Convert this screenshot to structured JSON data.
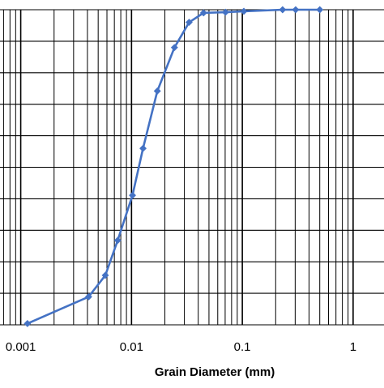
{
  "chart_data": {
    "type": "line",
    "x_scale": "log",
    "xlabel": "Grain Diameter (mm)",
    "ylabel": "",
    "title": "",
    "xlim": [
      0.00065,
      1.9
    ],
    "ylim": [
      0,
      100
    ],
    "grid": true,
    "x_tick_labels": [
      {
        "value": 0.001,
        "label": "0.001"
      },
      {
        "value": 0.01,
        "label": "0.01"
      },
      {
        "value": 0.1,
        "label": "0.1"
      },
      {
        "value": 1,
        "label": "1"
      }
    ],
    "y_gridlines": [
      0,
      10,
      20,
      30,
      40,
      50,
      60,
      70,
      80,
      90,
      100
    ],
    "series": [
      {
        "color": "#4472C4",
        "marker": "diamond",
        "points": [
          {
            "x": 0.00115,
            "y": 0.4
          },
          {
            "x": 0.0041,
            "y": 8.9
          },
          {
            "x": 0.0058,
            "y": 15.7
          },
          {
            "x": 0.0075,
            "y": 26.8
          },
          {
            "x": 0.0102,
            "y": 41.1
          },
          {
            "x": 0.0127,
            "y": 56.0
          },
          {
            "x": 0.0171,
            "y": 74.2
          },
          {
            "x": 0.0244,
            "y": 88.0
          },
          {
            "x": 0.0331,
            "y": 96.0
          },
          {
            "x": 0.0447,
            "y": 99.0
          },
          {
            "x": 0.0705,
            "y": 99.2
          },
          {
            "x": 0.1032,
            "y": 99.5
          },
          {
            "x": 0.231,
            "y": 100
          },
          {
            "x": 0.303,
            "y": 100
          },
          {
            "x": 0.5,
            "y": 100
          }
        ]
      }
    ]
  }
}
